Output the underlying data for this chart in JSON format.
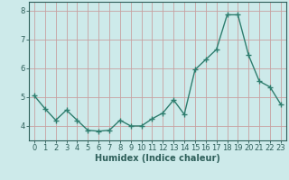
{
  "xlabel": "Humidex (Indice chaleur)",
  "ylabel": "",
  "x_values": [
    0,
    1,
    2,
    3,
    4,
    5,
    6,
    7,
    8,
    9,
    10,
    11,
    12,
    13,
    14,
    15,
    16,
    17,
    18,
    19,
    20,
    21,
    22,
    23
  ],
  "y_values": [
    5.05,
    4.6,
    4.2,
    4.55,
    4.2,
    3.85,
    3.82,
    3.85,
    4.2,
    4.0,
    4.0,
    4.25,
    4.45,
    4.9,
    4.4,
    5.95,
    6.3,
    6.65,
    7.85,
    7.85,
    6.45,
    5.55,
    5.35,
    4.75
  ],
  "line_color": "#2e7d6e",
  "marker": "+",
  "marker_size": 4,
  "bg_color": "#cdeaea",
  "grid_color": "#c8a0a0",
  "axis_color": "#2e5f5a",
  "tick_label_color": "#2e5f5a",
  "ylim": [
    3.5,
    8.3
  ],
  "yticks": [
    4,
    5,
    6,
    7,
    8
  ],
  "xlim": [
    -0.5,
    23.5
  ],
  "xticks": [
    0,
    1,
    2,
    3,
    4,
    5,
    6,
    7,
    8,
    9,
    10,
    11,
    12,
    13,
    14,
    15,
    16,
    17,
    18,
    19,
    20,
    21,
    22,
    23
  ],
  "title_color": "#2e5f5a",
  "xlabel_color": "#2e5f5a",
  "title_fontsize": 7,
  "xlabel_fontsize": 7,
  "tick_fontsize": 6,
  "linewidth": 1.0
}
